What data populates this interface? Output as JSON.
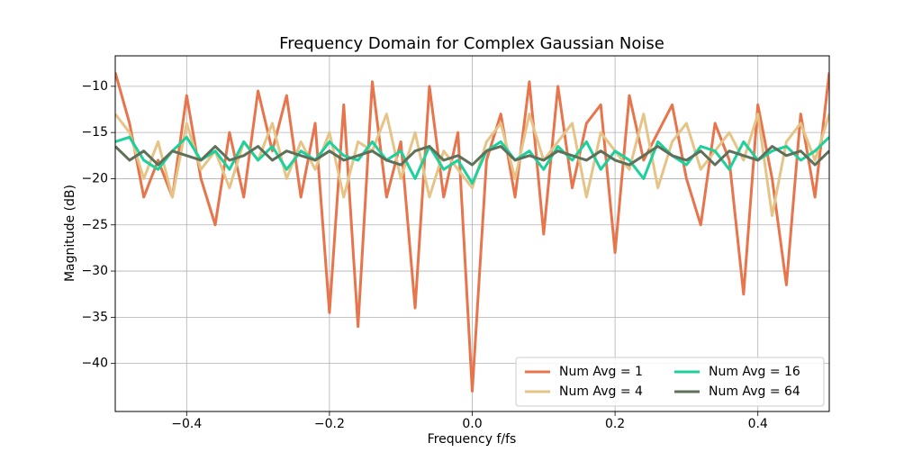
{
  "chart_data": {
    "type": "line",
    "title": "Frequency Domain for Complex Gaussian Noise",
    "xlabel": "Frequency f/fs",
    "ylabel": "Magnitude (dB)",
    "x": [
      -0.5,
      -0.48,
      -0.46,
      -0.44,
      -0.42,
      -0.4,
      -0.38,
      -0.36,
      -0.34,
      -0.32,
      -0.3,
      -0.28,
      -0.26,
      -0.24,
      -0.22,
      -0.2,
      -0.18,
      -0.16,
      -0.14,
      -0.12,
      -0.1,
      -0.08,
      -0.06,
      -0.04,
      -0.02,
      0,
      0.02,
      0.04,
      0.06,
      0.08,
      0.1,
      0.12,
      0.14,
      0.16,
      0.18,
      0.2,
      0.22,
      0.24,
      0.26,
      0.28,
      0.3,
      0.32,
      0.34,
      0.36,
      0.38,
      0.4,
      0.42,
      0.44,
      0.46,
      0.48,
      0.5
    ],
    "series": [
      {
        "name": "Num Avg = 1",
        "color": "#e8744c",
        "values": [
          -8.5,
          -14,
          -22,
          -18,
          -22,
          -11,
          -20,
          -25,
          -15,
          -22,
          -10.5,
          -17,
          -11,
          -22,
          -14,
          -34.5,
          -12,
          -36,
          -9.5,
          -22,
          -16,
          -34,
          -10,
          -22,
          -15,
          -43,
          -18,
          -13,
          -22,
          -9.5,
          -26,
          -10,
          -21,
          -14,
          -12,
          -28,
          -11,
          -18,
          -15,
          -12,
          -20,
          -25,
          -14,
          -18,
          -32.5,
          -12,
          -20,
          -31.5,
          -13,
          -22,
          -8.5
        ]
      },
      {
        "name": "Num Avg = 4",
        "color": "#e6c487",
        "values": [
          -13,
          -15,
          -20,
          -16,
          -22,
          -14,
          -19,
          -17,
          -21,
          -16,
          -18,
          -14,
          -20,
          -16,
          -19,
          -15,
          -22,
          -16,
          -17,
          -13,
          -20,
          -15,
          -22,
          -17,
          -19,
          -21,
          -16,
          -14,
          -20,
          -13,
          -18,
          -16,
          -14,
          -22,
          -15,
          -17,
          -19,
          -13,
          -21,
          -16,
          -14,
          -19,
          -17,
          -15,
          -18,
          -13,
          -24,
          -16,
          -14,
          -18,
          -13
        ]
      },
      {
        "name": "Num Avg = 16",
        "color": "#1dd19c",
        "values": [
          -16,
          -15.5,
          -18,
          -19,
          -17,
          -15.5,
          -18,
          -17,
          -19,
          -16,
          -18,
          -16.5,
          -19,
          -17,
          -18,
          -16,
          -17.5,
          -18,
          -16,
          -18,
          -17,
          -20,
          -16.5,
          -19,
          -18,
          -20.5,
          -17,
          -16,
          -18,
          -17,
          -19,
          -16.5,
          -18,
          -16,
          -19,
          -17,
          -18,
          -20,
          -16,
          -17.5,
          -18.5,
          -16.5,
          -17,
          -19,
          -16,
          -18,
          -17,
          -16.5,
          -18,
          -17,
          -15.5
        ]
      },
      {
        "name": "Num Avg = 64",
        "color": "#5e7059",
        "values": [
          -16.5,
          -18,
          -17,
          -18.5,
          -17,
          -17.5,
          -18,
          -16.5,
          -18,
          -17.5,
          -16.5,
          -18,
          -17,
          -17.5,
          -18,
          -17,
          -18,
          -17.5,
          -17,
          -18,
          -18.5,
          -17,
          -16.5,
          -18,
          -17.5,
          -18.5,
          -17,
          -16.5,
          -18,
          -17.5,
          -18,
          -17,
          -17.5,
          -18,
          -17,
          -18,
          -18.5,
          -17.5,
          -16.5,
          -17.5,
          -18,
          -17,
          -18.5,
          -17,
          -17.5,
          -18,
          -16.5,
          -17.5,
          -17,
          -18.5,
          -17
        ]
      }
    ],
    "xlim": [
      -0.5,
      0.5
    ],
    "ylim": [
      -45.2,
      -6.7
    ],
    "xticks": [
      {
        "value": -0.4,
        "label": "−0.4"
      },
      {
        "value": -0.2,
        "label": "−0.2"
      },
      {
        "value": 0,
        "label": "0.0"
      },
      {
        "value": 0.2,
        "label": "0.2"
      },
      {
        "value": 0.4,
        "label": "0.4"
      }
    ],
    "yticks": [
      {
        "value": -10,
        "label": "−10"
      },
      {
        "value": -15,
        "label": "−15"
      },
      {
        "value": -20,
        "label": "−20"
      },
      {
        "value": -25,
        "label": "−25"
      },
      {
        "value": -30,
        "label": "−30"
      },
      {
        "value": -35,
        "label": "−35"
      },
      {
        "value": -40,
        "label": "−40"
      }
    ],
    "grid": true,
    "legend": "lower right"
  }
}
